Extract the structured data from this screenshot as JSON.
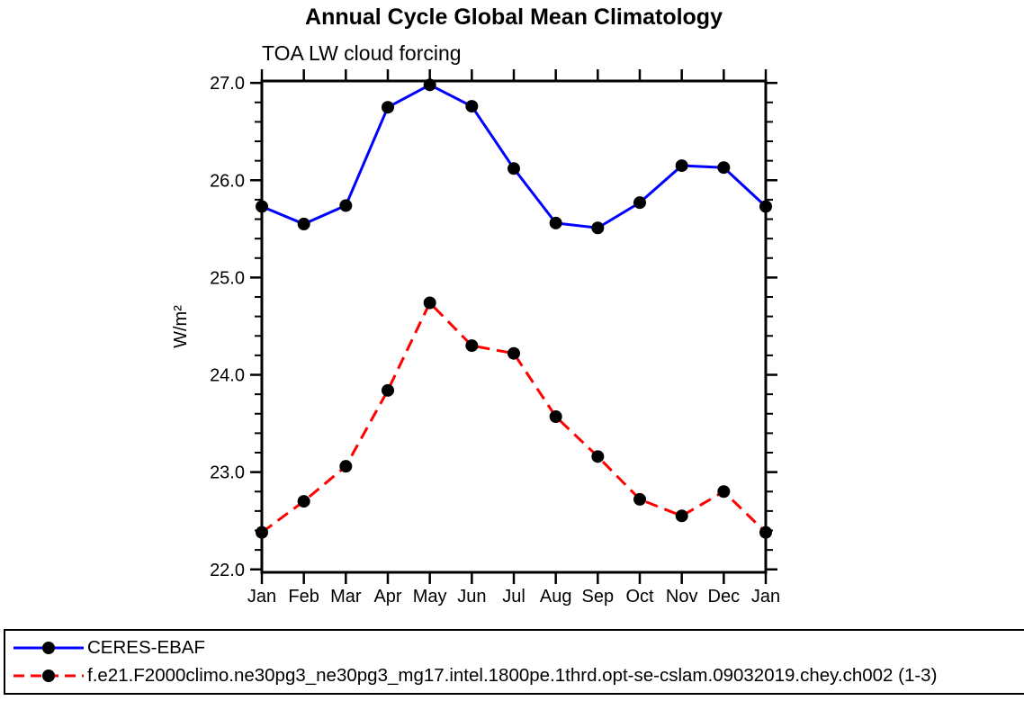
{
  "title": "Annual Cycle Global Mean Climatology",
  "subtitle": "TOA LW cloud forcing",
  "chart_data": {
    "type": "line",
    "categories": [
      "Jan",
      "Feb",
      "Mar",
      "Apr",
      "May",
      "Jun",
      "Jul",
      "Aug",
      "Sep",
      "Oct",
      "Nov",
      "Dec",
      "Jan"
    ],
    "xlabel": "",
    "ylabel": "W/m²",
    "ylim": [
      22.0,
      27.0
    ],
    "ymajor_ticks": [
      22.0,
      23.0,
      24.0,
      25.0,
      26.0,
      27.0
    ],
    "ytick_labels": [
      "22.0",
      "23.0",
      "24.0",
      "25.0",
      "26.0",
      "27.0"
    ],
    "yminor_step": 0.2,
    "grid": false,
    "legend_position": "bottom-outside-boxed",
    "axis_color": "#000000",
    "series": [
      {
        "name": "CERES-EBAF",
        "line_color": "#0000ff",
        "line_style": "solid",
        "marker": "filled-circle",
        "marker_color": "#000000",
        "values": [
          25.73,
          25.55,
          25.74,
          26.75,
          26.98,
          26.76,
          26.12,
          25.56,
          25.51,
          25.77,
          26.15,
          26.13,
          25.73
        ]
      },
      {
        "name": "f.e21.F2000climo.ne30pg3_ne30pg3_mg17.intel.1800pe.1thrd.opt-se-cslam.09032019.chey.ch002 (1-3)",
        "line_color": "#ff0000",
        "line_style": "dashed",
        "marker": "filled-circle",
        "marker_color": "#000000",
        "values": [
          22.38,
          22.7,
          23.06,
          23.84,
          24.74,
          24.3,
          24.22,
          23.57,
          23.16,
          22.72,
          22.55,
          22.8,
          22.38
        ]
      }
    ]
  }
}
